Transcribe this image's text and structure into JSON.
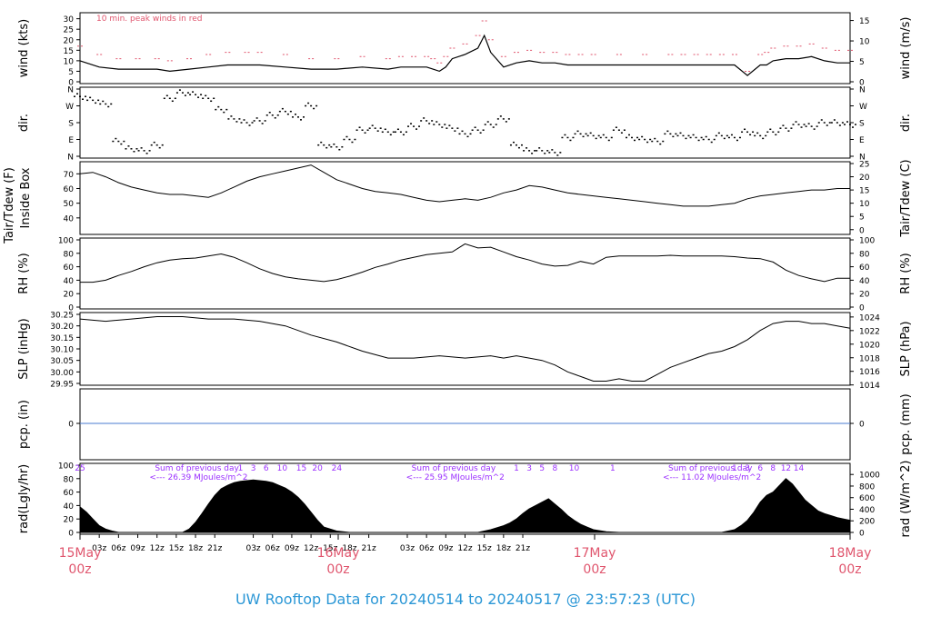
{
  "title": "UW Rooftop Data for 20240514  to  20240517 @ 23:57:23  (UTC)",
  "colors": {
    "title": "#2b97d6",
    "date": "#e0566e",
    "red": "#e0566e",
    "purple": "#9b30ff",
    "blue": "#4a7bd0",
    "black": "#000000"
  },
  "chart_data": [
    {
      "type": "line",
      "panel": "wind",
      "ylabel_left": "wind (kts)",
      "ylabel_right": "wind (m/s)",
      "ylim": [
        0,
        32
      ],
      "yticks_left": [
        "0",
        "5",
        "10",
        "15",
        "20",
        "25",
        "30"
      ],
      "yticks_right": [
        "0",
        "5",
        "10",
        "15"
      ],
      "annotation": "10 min. peak winds in red",
      "series": [
        {
          "name": "wind",
          "color": "#000000",
          "x": [
            0,
            3,
            6,
            9,
            12,
            14,
            17,
            20,
            23,
            26,
            28,
            32,
            36,
            40,
            44,
            48,
            50,
            52,
            54,
            55,
            56,
            57,
            58,
            60,
            62,
            63,
            64,
            66,
            68,
            70,
            72,
            74,
            76,
            78,
            80,
            84,
            88,
            92,
            94,
            96,
            98,
            100,
            102,
            104,
            106,
            107,
            108,
            110,
            112,
            114,
            116,
            118,
            120
          ],
          "y": [
            10,
            7,
            6,
            6,
            6,
            5,
            6,
            7,
            8,
            8,
            8,
            7,
            6,
            6,
            7,
            6,
            7,
            7,
            7,
            6,
            5,
            7,
            11,
            13,
            16,
            22,
            14,
            7,
            9,
            10,
            9,
            9,
            8,
            8,
            8,
            8,
            8,
            8,
            8,
            8,
            8,
            8,
            8,
            3,
            8,
            8,
            10,
            11,
            11,
            12,
            10,
            9,
            9
          ]
        },
        {
          "name": "10 min. peak",
          "color": "#e0566e",
          "x": [
            0,
            3,
            6,
            9,
            12,
            14,
            17,
            20,
            23,
            26,
            28,
            32,
            36,
            40,
            44,
            48,
            50,
            52,
            54,
            55,
            56,
            57,
            58,
            60,
            62,
            63,
            64,
            66,
            68,
            70,
            72,
            74,
            76,
            78,
            80,
            84,
            88,
            92,
            94,
            96,
            98,
            100,
            102,
            104,
            106,
            107,
            108,
            110,
            112,
            114,
            116,
            118,
            120
          ],
          "y": [
            17,
            13,
            11,
            11,
            11,
            10,
            11,
            13,
            14,
            14,
            14,
            13,
            11,
            11,
            12,
            11,
            12,
            12,
            12,
            11,
            9,
            12,
            16,
            18,
            22,
            29,
            20,
            12,
            14,
            15,
            14,
            14,
            13,
            13,
            13,
            13,
            13,
            13,
            13,
            13,
            13,
            13,
            13,
            5,
            13,
            14,
            16,
            17,
            17,
            18,
            16,
            15,
            15
          ]
        }
      ]
    },
    {
      "type": "scatter",
      "panel": "direction",
      "ylabel_left": "dir.",
      "ylabel_right": "dir.",
      "yticks_left": [
        "N",
        "E",
        "S",
        "W",
        "N"
      ],
      "yticks_right": [
        "N",
        "E",
        "S",
        "W",
        "N"
      ],
      "ylim": [
        0,
        360
      ],
      "x": [
        0,
        2,
        4,
        6,
        8,
        10,
        12,
        14,
        16,
        18,
        20,
        22,
        24,
        26,
        28,
        30,
        32,
        34,
        36,
        38,
        40,
        42,
        44,
        46,
        48,
        50,
        52,
        54,
        56,
        58,
        60,
        62,
        64,
        66,
        68,
        70,
        72,
        74,
        76,
        78,
        80,
        82,
        84,
        86,
        88,
        90,
        92,
        94,
        96,
        98,
        100,
        102,
        104,
        106,
        108,
        110,
        112,
        114,
        116,
        118,
        120
      ],
      "y": [
        320,
        300,
        280,
        80,
        40,
        30,
        60,
        310,
        340,
        330,
        310,
        250,
        200,
        180,
        190,
        220,
        240,
        210,
        270,
        60,
        50,
        90,
        140,
        150,
        130,
        130,
        160,
        190,
        170,
        150,
        120,
        140,
        170,
        200,
        60,
        30,
        30,
        20,
        100,
        120,
        110,
        100,
        140,
        100,
        90,
        80,
        120,
        110,
        100,
        90,
        110,
        100,
        130,
        110,
        130,
        150,
        170,
        160,
        180,
        180,
        170
      ]
    },
    {
      "type": "line",
      "panel": "temperature",
      "ylabel_left": "Tair/Tdew (F)\nInside Box",
      "ylabel_right": "Tair/Tdew (C)",
      "ylim": [
        30,
        77
      ],
      "yticks_left": [
        "40",
        "50",
        "60",
        "70"
      ],
      "yticks_right": [
        "0",
        "5",
        "10",
        "15",
        "20",
        "25"
      ],
      "series": [
        {
          "name": "Tair",
          "color": "#000000",
          "x": [
            0,
            2,
            4,
            6,
            8,
            10,
            12,
            14,
            16,
            18,
            20,
            22,
            24,
            26,
            28,
            30,
            32,
            34,
            36,
            38,
            40,
            42,
            44,
            46,
            48,
            50,
            52,
            54,
            56,
            58,
            60,
            62,
            64,
            66,
            68,
            70,
            72,
            74,
            76,
            78,
            80,
            82,
            84,
            86,
            88,
            90,
            92,
            94,
            96,
            98,
            100,
            102,
            104,
            106,
            108,
            110,
            112,
            114,
            116,
            118,
            120
          ],
          "y": [
            70,
            71,
            68,
            64,
            61,
            59,
            57,
            56,
            56,
            55,
            54,
            57,
            61,
            65,
            68,
            70,
            72,
            74,
            76,
            71,
            66,
            63,
            60,
            58,
            57,
            56,
            54,
            52,
            51,
            52,
            53,
            52,
            54,
            57,
            59,
            62,
            61,
            59,
            57,
            56,
            55,
            54,
            53,
            52,
            51,
            50,
            49,
            48,
            48,
            48,
            49,
            50,
            53,
            55,
            56,
            57,
            58,
            59,
            59,
            60,
            60
          ]
        }
      ]
    },
    {
      "type": "line",
      "panel": "humidity",
      "ylabel_left": "RH (%)",
      "ylabel_right": "RH (%)",
      "ylim": [
        0,
        100
      ],
      "yticks_left": [
        "0",
        "20",
        "40",
        "60",
        "80",
        "100"
      ],
      "yticks_right": [
        "0",
        "20",
        "40",
        "60",
        "80",
        "100"
      ],
      "series": [
        {
          "name": "RH",
          "color": "#000000",
          "x": [
            0,
            2,
            4,
            6,
            8,
            10,
            12,
            14,
            16,
            18,
            20,
            22,
            24,
            26,
            28,
            30,
            32,
            34,
            36,
            38,
            40,
            42,
            44,
            46,
            48,
            50,
            52,
            54,
            56,
            58,
            60,
            62,
            64,
            66,
            68,
            70,
            72,
            74,
            76,
            78,
            80,
            82,
            84,
            86,
            88,
            90,
            92,
            94,
            96,
            98,
            100,
            102,
            104,
            106,
            108,
            110,
            112,
            114,
            116,
            118,
            120
          ],
          "y": [
            37,
            37,
            40,
            47,
            53,
            60,
            66,
            70,
            72,
            73,
            76,
            79,
            74,
            66,
            57,
            50,
            45,
            42,
            40,
            38,
            41,
            46,
            52,
            59,
            64,
            70,
            74,
            78,
            80,
            82,
            94,
            88,
            89,
            82,
            75,
            70,
            64,
            61,
            62,
            68,
            64,
            74,
            76,
            76,
            76,
            76,
            77,
            76,
            76,
            76,
            76,
            75,
            73,
            72,
            67,
            55,
            47,
            42,
            38,
            43,
            43
          ]
        }
      ]
    },
    {
      "type": "line",
      "panel": "pressure",
      "ylabel_left": "SLP (inHg)",
      "ylabel_right": "SLP (hPa)",
      "ylim": [
        29.95,
        30.25
      ],
      "yticks_left": [
        "29.95",
        "30.00",
        "30.05",
        "30.10",
        "30.15",
        "30.20",
        "30.25"
      ],
      "yticks_right": [
        "1014",
        "1016",
        "1018",
        "1020",
        "1022",
        "1024"
      ],
      "series": [
        {
          "name": "SLP",
          "color": "#000000",
          "x": [
            0,
            4,
            8,
            12,
            16,
            20,
            24,
            28,
            32,
            36,
            40,
            44,
            48,
            52,
            56,
            60,
            64,
            66,
            68,
            70,
            72,
            74,
            76,
            78,
            80,
            82,
            84,
            86,
            88,
            90,
            92,
            94,
            96,
            98,
            100,
            102,
            104,
            106,
            108,
            110,
            112,
            114,
            116,
            118,
            120
          ],
          "y": [
            30.23,
            30.22,
            30.23,
            30.24,
            30.24,
            30.23,
            30.23,
            30.22,
            30.2,
            30.16,
            30.13,
            30.09,
            30.06,
            30.06,
            30.07,
            30.06,
            30.07,
            30.06,
            30.07,
            30.06,
            30.05,
            30.03,
            30.0,
            29.98,
            29.96,
            29.96,
            29.97,
            29.96,
            29.96,
            29.99,
            30.02,
            30.04,
            30.06,
            30.08,
            30.09,
            30.11,
            30.14,
            30.18,
            30.21,
            30.22,
            30.22,
            30.21,
            30.21,
            30.2,
            30.19
          ]
        }
      ]
    },
    {
      "type": "line",
      "panel": "precipitation",
      "ylabel_left": "pcp. (in)",
      "ylabel_right": "pcp. (mm)",
      "yticks_left": [
        "0"
      ],
      "yticks_right": [
        "0"
      ],
      "series": [
        {
          "name": "pcp",
          "color": "#4a7bd0",
          "x": [
            0,
            120
          ],
          "y": [
            0,
            0
          ]
        }
      ]
    },
    {
      "type": "area",
      "panel": "radiation",
      "ylabel_left": "rad(Lgly/hr)",
      "ylabel_right": "rad (W/m^2)",
      "ylim": [
        0,
        100
      ],
      "yticks_left": [
        "0",
        "20",
        "40",
        "60",
        "80",
        "100"
      ],
      "yticks_right": [
        "0",
        "200",
        "400",
        "600",
        "800",
        "1000"
      ],
      "hour_labels": [
        {
          "text": "25",
          "hour": 0
        },
        {
          "text": "1",
          "hour": 25
        },
        {
          "text": "3",
          "hour": 27
        },
        {
          "text": "6",
          "hour": 29
        },
        {
          "text": "10",
          "hour": 31.5
        },
        {
          "text": "15",
          "hour": 34.5
        },
        {
          "text": "20",
          "hour": 37
        },
        {
          "text": "24",
          "hour": 40
        },
        {
          "text": "1",
          "hour": 68
        },
        {
          "text": "3",
          "hour": 70
        },
        {
          "text": "5",
          "hour": 72
        },
        {
          "text": "8",
          "hour": 74
        },
        {
          "text": "10",
          "hour": 77
        },
        {
          "text": "1",
          "hour": 83
        },
        {
          "text": "1",
          "hour": 102
        },
        {
          "text": "3",
          "hour": 104
        },
        {
          "text": "6",
          "hour": 106
        },
        {
          "text": "8",
          "hour": 108
        },
        {
          "text": "12",
          "hour": 110
        },
        {
          "text": "14",
          "hour": 112
        }
      ],
      "sums": [
        {
          "line1": "Sum of previous day",
          "line2": "<--- 26.39 MJoules/m^2",
          "hour": 6
        },
        {
          "line1": "Sum of previous day",
          "line2": "<--- 25.95 MJoules/m^2",
          "hour": 46
        },
        {
          "line1": "Sum of previous day",
          "line2": "<--- 11.02 MJoules/m^2",
          "hour": 86
        }
      ],
      "x": [
        0,
        1,
        2,
        3,
        4,
        5,
        6,
        8,
        10,
        12,
        14,
        16,
        17,
        18,
        19,
        20,
        21,
        22,
        23,
        24,
        25,
        26,
        27,
        28,
        29,
        30,
        31,
        32,
        33,
        34,
        35,
        36,
        37,
        38,
        40,
        42,
        44,
        46,
        48,
        50,
        52,
        54,
        56,
        58,
        60,
        62,
        64,
        66,
        67,
        68,
        69,
        70,
        71,
        72,
        73,
        74,
        75,
        76,
        77,
        78,
        79,
        80,
        82,
        84,
        86,
        88,
        90,
        92,
        94,
        96,
        98,
        100,
        102,
        103,
        104,
        105,
        106,
        107,
        108,
        109,
        110,
        111,
        112,
        113,
        114,
        115,
        116,
        117,
        118,
        119,
        120
      ],
      "y": [
        38,
        30,
        20,
        10,
        5,
        2,
        0,
        0,
        0,
        0,
        0,
        0,
        5,
        15,
        28,
        42,
        55,
        65,
        70,
        74,
        76,
        77,
        78,
        77,
        76,
        74,
        70,
        66,
        60,
        52,
        42,
        30,
        18,
        8,
        2,
        0,
        0,
        0,
        0,
        0,
        0,
        0,
        0,
        0,
        0,
        0,
        4,
        10,
        14,
        20,
        28,
        35,
        40,
        45,
        50,
        42,
        34,
        25,
        18,
        12,
        8,
        4,
        1,
        0,
        0,
        0,
        0,
        0,
        0,
        0,
        0,
        0,
        4,
        10,
        18,
        30,
        45,
        55,
        60,
        70,
        80,
        72,
        60,
        48,
        40,
        32,
        28,
        25,
        22,
        20,
        18
      ],
      "x_tick_labels": [
        "03z",
        "06z",
        "09z",
        "12z",
        "15z",
        "18z",
        "21z",
        "03z",
        "06z",
        "09z",
        "12z",
        "15z",
        "18z",
        "21z",
        "03z",
        "06z",
        "09z",
        "12z",
        "15z",
        "18z",
        "21z"
      ],
      "date_labels": [
        {
          "day": "15May",
          "time": "00z"
        },
        {
          "day": "16May",
          "time": "00z"
        },
        {
          "day": "17May",
          "time": "00z"
        },
        {
          "day": "18May",
          "time": "00z"
        }
      ]
    }
  ]
}
